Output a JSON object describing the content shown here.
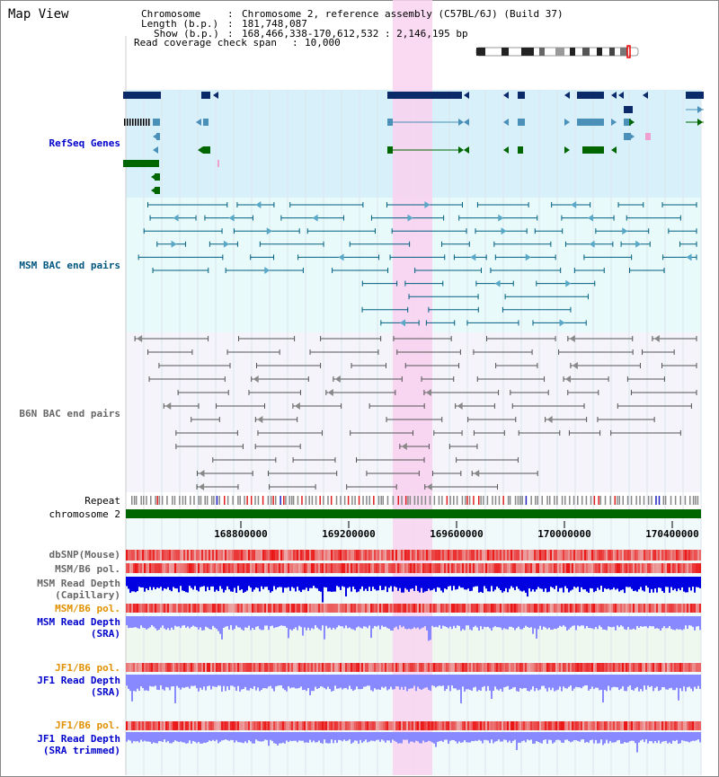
{
  "page": {
    "title": "Map View"
  },
  "info": {
    "chromosome_label": "Chromosome",
    "chromosome_value": "Chromosome 2, reference assembly (C57BL/6J) (Build 37)",
    "length_label": "Length (b.p.)",
    "length_value": "181,748,087",
    "show_label": "Show (b.p.)",
    "show_value": "168,466,338-170,612,532 : 2,146,195 bp",
    "span_label": "Read coverage check span",
    "span_value": "10,000"
  },
  "tracks": {
    "refseq": "RefSeq Genes",
    "msm_bac": "MSM BAC end pairs",
    "b6n_bac": "B6N BAC end pairs",
    "repeat": "Repeat",
    "chromosome": "chromosome 2",
    "dbsnp": "dbSNP(Mouse)",
    "msm_b6_pol_1": "MSM/B6 pol.",
    "msm_depth_cap_1": "MSM Read Depth",
    "msm_depth_cap_2": "(Capillary)",
    "msm_b6_pol_2": "MSM/B6 pol.",
    "msm_depth_sra_1": "MSM Read Depth",
    "msm_depth_sra_2": "(SRA)",
    "jf1_b6_pol_1": "JF1/B6 pol.",
    "jf1_depth_sra_1": "JF1 Read Depth",
    "jf1_depth_sra_2": "(SRA)",
    "jf1_b6_pol_2": "JF1/B6 pol.",
    "jf1_depth_trim_1": "JF1 Read Depth",
    "jf1_depth_trim_2": "(SRA trimmed)"
  },
  "axis": {
    "ticks": [
      "168800000",
      "169200000",
      "169600000",
      "170000000",
      "170400000"
    ]
  },
  "colors": {
    "highlight": "#f8d4f0",
    "refseq_bg": "#d8f0fa",
    "msm_bg": "#e8fafa",
    "b6n_bg": "#f4f4fa",
    "gene_dark": "#0a2a6a",
    "gene_mid": "#4a90b8",
    "gene_green": "#006600",
    "msm_bac": "#005f80",
    "b6n_bac": "#555555",
    "chrom_green": "#006600",
    "pol_red": "#e83030",
    "depth_blue": "#0000e0",
    "depth_light": "#8888ff"
  }
}
